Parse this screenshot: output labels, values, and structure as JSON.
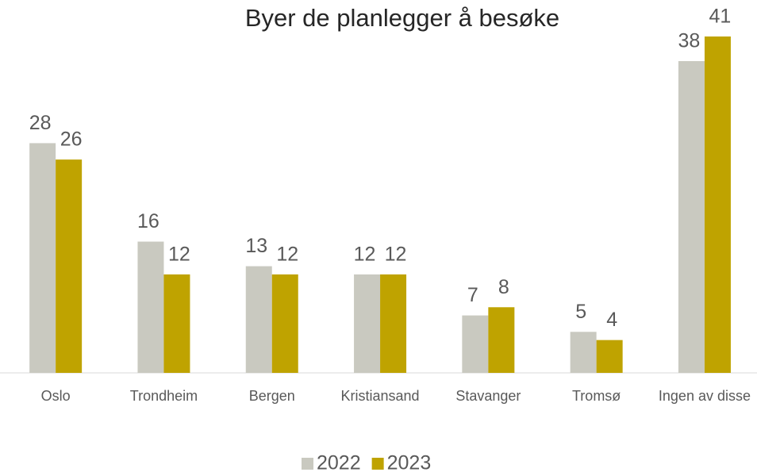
{
  "chart_data": {
    "type": "bar",
    "title": "Byer de planlegger å besøke",
    "categories": [
      "Oslo",
      "Trondheim",
      "Bergen",
      "Kristiansand",
      "Stavanger",
      "Tromsø",
      "Ingen av disse"
    ],
    "series": [
      {
        "name": "2022",
        "color": "#c9c9c0",
        "values": [
          28,
          16,
          13,
          12,
          7,
          5,
          38
        ]
      },
      {
        "name": "2023",
        "color": "#bfa300",
        "values": [
          26,
          12,
          12,
          12,
          8,
          4,
          41
        ]
      }
    ]
  }
}
